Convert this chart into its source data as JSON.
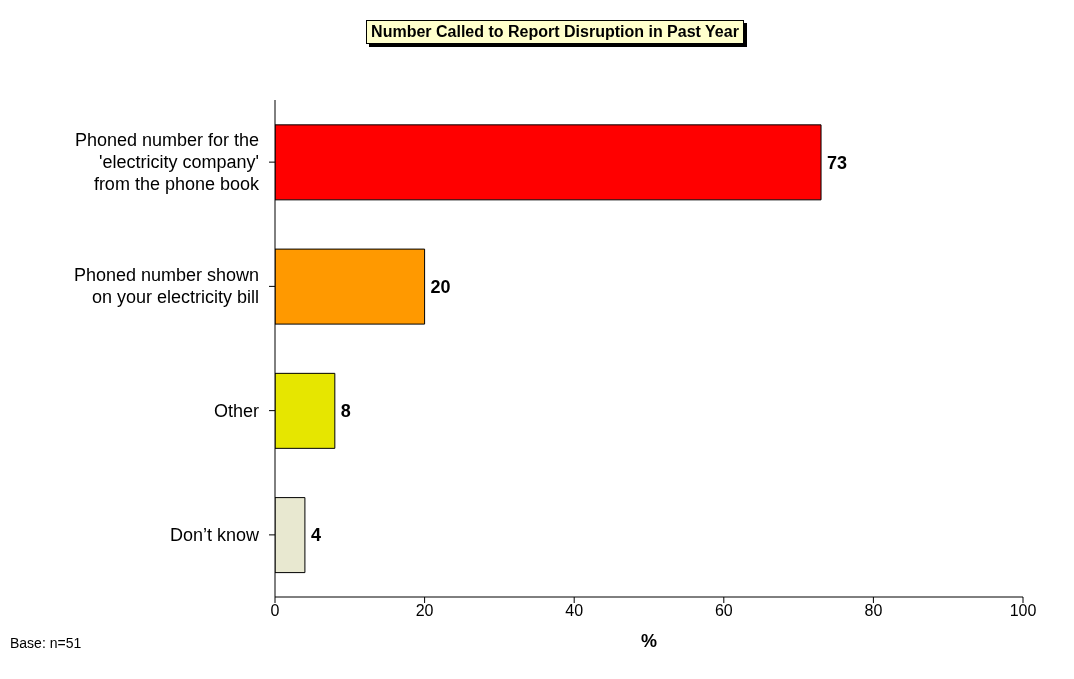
{
  "chart_data": {
    "type": "bar",
    "orientation": "horizontal",
    "title": "Number Called to Report Disruption in Past Year",
    "categories": [
      "Phoned number for the\n'electricity company'\nfrom the phone book",
      "Phoned number shown\non your electricity bill",
      "Other",
      "Don’t know"
    ],
    "values": [
      73,
      20,
      8,
      4
    ],
    "colors": [
      "#ff0000",
      "#ff9900",
      "#e6e600",
      "#e8e8d0"
    ],
    "xlim": [
      0,
      100
    ],
    "xticks": [
      0,
      20,
      40,
      60,
      80,
      100
    ],
    "xlabel": "%",
    "data_labels": true,
    "annotations": [
      "Base: n=51"
    ]
  }
}
